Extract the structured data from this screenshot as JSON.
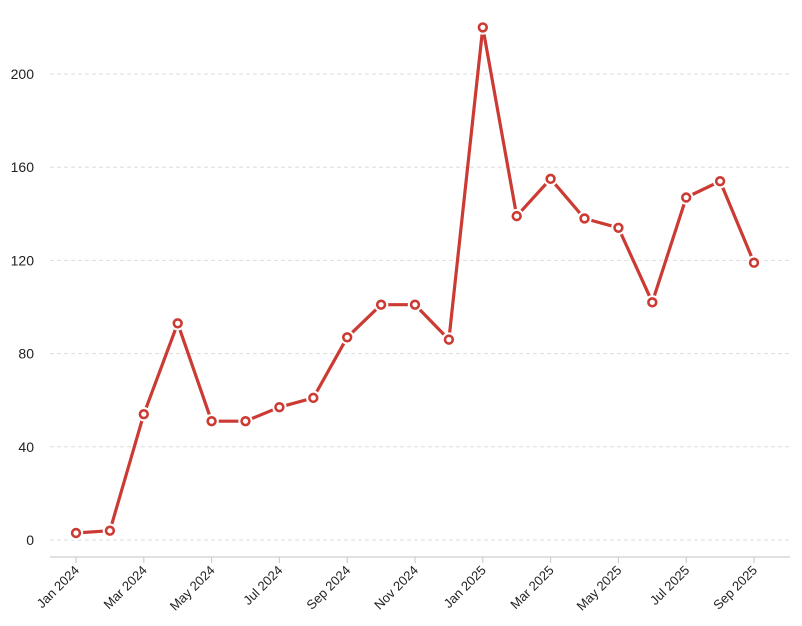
{
  "chart_data": {
    "type": "line",
    "title": "",
    "xlabel": "",
    "ylabel": "",
    "ylim": [
      0,
      220
    ],
    "yticks": [
      0,
      40,
      80,
      120,
      160,
      200
    ],
    "grid": "horizontal-dashed",
    "x": [
      "2024-01",
      "2024-02",
      "2024-03",
      "2024-04",
      "2024-05",
      "2024-06",
      "2024-07",
      "2024-08",
      "2024-09",
      "2024-10",
      "2024-11",
      "2024-12",
      "2025-01",
      "2025-02",
      "2025-03",
      "2025-04",
      "2025-05",
      "2025-06",
      "2025-07",
      "2025-08",
      "2025-09"
    ],
    "x_tick_labels": [
      "Jan 2024",
      "Mar 2024",
      "May 2024",
      "Jul 2024",
      "Sep 2024",
      "Nov 2024",
      "Jan 2025",
      "Mar 2025",
      "May 2025",
      "Jul 2025",
      "Sep 2025"
    ],
    "x_tick_label_months": [
      "2024-01",
      "2024-03",
      "2024-05",
      "2024-07",
      "2024-09",
      "2024-11",
      "2025-01",
      "2025-03",
      "2025-05",
      "2025-07",
      "2025-09"
    ],
    "series": [
      {
        "color": "#cc3b33",
        "values": [
          3,
          4,
          54,
          93,
          51,
          51,
          57,
          61,
          87,
          101,
          101,
          86,
          220,
          139,
          155,
          138,
          134,
          102,
          147,
          154,
          119
        ]
      }
    ]
  }
}
